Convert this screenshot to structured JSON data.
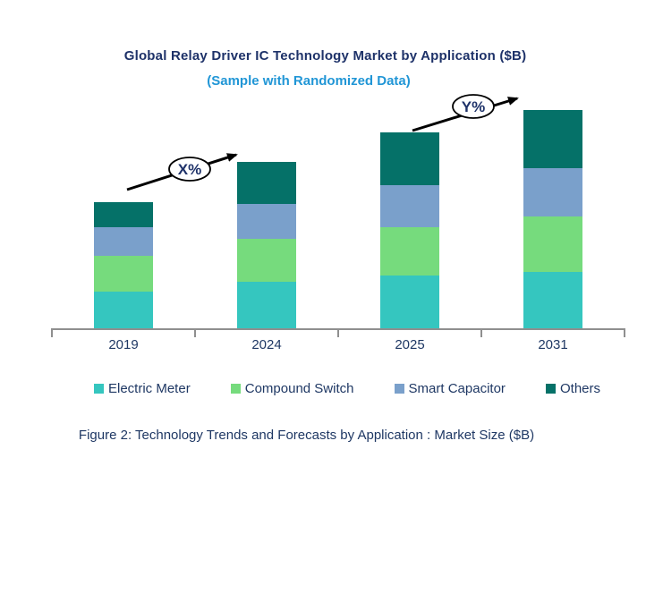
{
  "header": {
    "title": "Global Relay Driver IC Technology Market by Application ($B)",
    "subtitle": "(Sample with Randomized Data)"
  },
  "caption": "Figure 2: Technology Trends and Forecasts by Application : Market Size ($B)",
  "colors": {
    "title_text": "#1e3269",
    "subtitle_text": "#2196d6",
    "body_text": "#1f3864",
    "axis": "#8f8f8f",
    "arrow": "#000000",
    "annotation_bubble_fill": "#ffffff",
    "annotation_bubble_stroke": "#000000"
  },
  "chart_data": {
    "type": "bar",
    "stacked": true,
    "title": "Global Relay Driver IC Technology Market by Application ($B)",
    "subtitle": "(Sample with Randomized Data)",
    "xlabel": "",
    "ylabel": "",
    "ylim": [
      0,
      26
    ],
    "grid": false,
    "legend_position": "bottom",
    "categories": [
      "2019",
      "2024",
      "2025",
      "2031"
    ],
    "series": [
      {
        "name": "Electric Meter",
        "color": "#35c6bf",
        "values": [
          4.2,
          5.3,
          6.0,
          6.4
        ]
      },
      {
        "name": "Compound Switch",
        "color": "#76db7d",
        "values": [
          4.0,
          4.8,
          5.4,
          6.2
        ]
      },
      {
        "name": "Smart Capacitor",
        "color": "#7aa0cb",
        "values": [
          3.2,
          3.9,
          4.7,
          5.4
        ]
      },
      {
        "name": "Others",
        "color": "#057168",
        "values": [
          2.8,
          4.7,
          5.9,
          6.5
        ]
      }
    ],
    "totals": [
      14.2,
      18.7,
      22.0,
      24.5
    ],
    "annotations": [
      {
        "label": "X%",
        "between": [
          "2019",
          "2024"
        ],
        "meaning": "growth rate 2019 to 2024"
      },
      {
        "label": "Y%",
        "between": [
          "2025",
          "2031"
        ],
        "meaning": "growth rate 2025 to 2031"
      }
    ]
  }
}
